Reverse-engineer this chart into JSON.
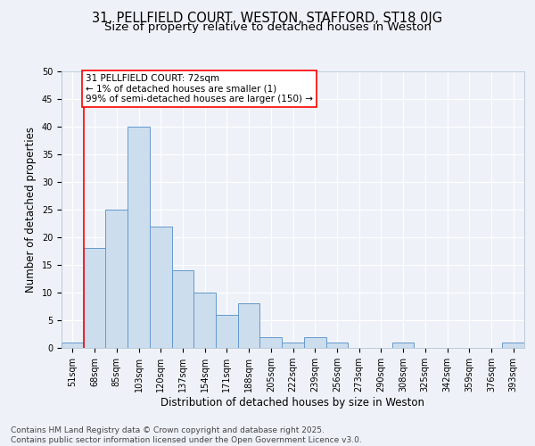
{
  "title_line1": "31, PELLFIELD COURT, WESTON, STAFFORD, ST18 0JG",
  "title_line2": "Size of property relative to detached houses in Weston",
  "xlabel": "Distribution of detached houses by size in Weston",
  "ylabel": "Number of detached properties",
  "categories": [
    "51sqm",
    "68sqm",
    "85sqm",
    "103sqm",
    "120sqm",
    "137sqm",
    "154sqm",
    "171sqm",
    "188sqm",
    "205sqm",
    "222sqm",
    "239sqm",
    "256sqm",
    "273sqm",
    "290sqm",
    "308sqm",
    "325sqm",
    "342sqm",
    "359sqm",
    "376sqm",
    "393sqm"
  ],
  "values": [
    1,
    18,
    25,
    40,
    22,
    14,
    10,
    6,
    8,
    2,
    1,
    2,
    1,
    0,
    0,
    1,
    0,
    0,
    0,
    0,
    1
  ],
  "bar_color": "#ccdded",
  "bar_edgecolor": "#6699cc",
  "annotation_line1": "31 PELLFIELD COURT: 72sqm",
  "annotation_line2": "← 1% of detached houses are smaller (1)",
  "annotation_line3": "99% of semi-detached houses are larger (150) →",
  "annotation_box_color": "white",
  "annotation_box_edgecolor": "red",
  "footnote": "Contains HM Land Registry data © Crown copyright and database right 2025.\nContains public sector information licensed under the Open Government Licence v3.0.",
  "ylim": [
    0,
    50
  ],
  "yticks": [
    0,
    5,
    10,
    15,
    20,
    25,
    30,
    35,
    40,
    45,
    50
  ],
  "bg_color": "#eef2f8",
  "grid_color": "#ffffff",
  "title_fontsize": 10.5,
  "subtitle_fontsize": 9.5,
  "axis_label_fontsize": 8.5,
  "tick_fontsize": 7,
  "annot_fontsize": 7.5,
  "footnote_fontsize": 6.5,
  "red_line_index": 1
}
